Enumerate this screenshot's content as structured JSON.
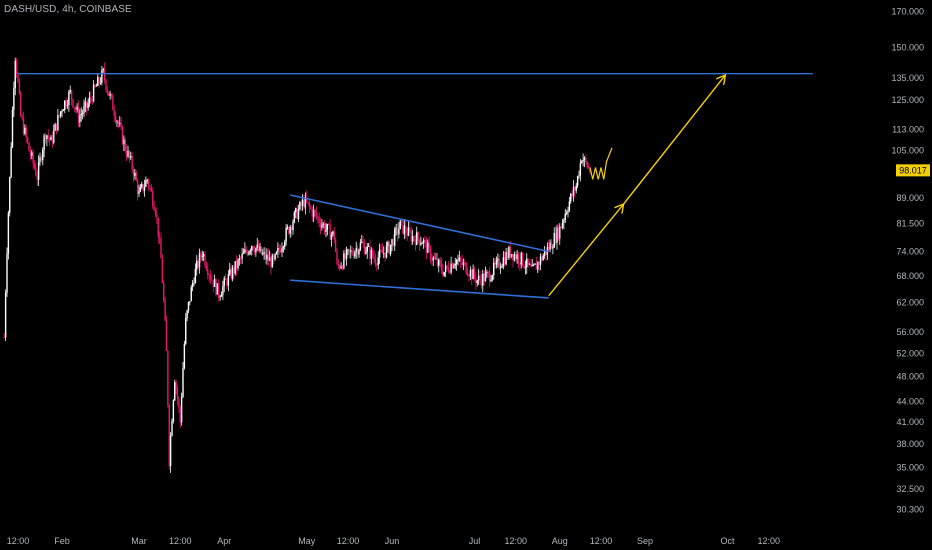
{
  "header": {
    "symbol_line": "DASH/USD, 4h, COINBASE"
  },
  "colors": {
    "background": "#000000",
    "candle_up": "#ffffff",
    "candle_down": "#e6196b",
    "trendline": "#2f6fd6",
    "projection": "#f5d000",
    "last_price_bg": "#f5d000",
    "tick_text": "#b2b5be"
  },
  "chart_data": {
    "type": "candlestick",
    "title": "DASH/USD, 4h, COINBASE",
    "y_scale": "log",
    "ylim": [
      29.5,
      172
    ],
    "y_ticks": [
      "170.000",
      "150.000",
      "135.000",
      "125.000",
      "113.000",
      "105.000",
      "89.000",
      "81.500",
      "74.000",
      "68.000",
      "62.000",
      "56.000",
      "52.000",
      "48.000",
      "44.000",
      "41.000",
      "38.000",
      "35.000",
      "32.500",
      "30.300"
    ],
    "x_ticks": [
      {
        "label": "12:00",
        "date": "2021-01-16"
      },
      {
        "label": "Feb",
        "date": "2021-02-01"
      },
      {
        "label": "Mar",
        "date": "2021-03-01"
      },
      {
        "label": "12:00",
        "date": "2021-03-16"
      },
      {
        "label": "Apr",
        "date": "2021-04-01"
      },
      {
        "label": "May",
        "date": "2021-05-01"
      },
      {
        "label": "12:00",
        "date": "2021-05-16"
      },
      {
        "label": "Jun",
        "date": "2021-06-01"
      },
      {
        "label": "Jul",
        "date": "2021-07-01"
      },
      {
        "label": "12:00",
        "date": "2021-07-16"
      },
      {
        "label": "Aug",
        "date": "2021-08-01"
      },
      {
        "label": "12:00",
        "date": "2021-08-16"
      },
      {
        "label": "Sep",
        "date": "2021-09-01"
      },
      {
        "label": "Oct",
        "date": "2021-10-01"
      },
      {
        "label": "12:00",
        "date": "2021-10-16"
      }
    ],
    "last_price": "98.017",
    "price_path": [
      [
        "2021-01-11",
        55
      ],
      [
        "2021-01-13",
        95
      ],
      [
        "2021-01-15",
        146
      ],
      [
        "2021-01-17",
        118
      ],
      [
        "2021-01-20",
        105
      ],
      [
        "2021-01-23",
        96
      ],
      [
        "2021-01-26",
        112
      ],
      [
        "2021-01-28",
        108
      ],
      [
        "2021-02-01",
        122
      ],
      [
        "2021-02-04",
        128
      ],
      [
        "2021-02-07",
        118
      ],
      [
        "2021-02-10",
        122
      ],
      [
        "2021-02-13",
        130
      ],
      [
        "2021-02-16",
        137
      ],
      [
        "2021-02-18",
        128
      ],
      [
        "2021-02-21",
        117
      ],
      [
        "2021-02-24",
        106
      ],
      [
        "2021-02-27",
        98
      ],
      [
        "2021-03-01",
        90
      ],
      [
        "2021-03-04",
        95
      ],
      [
        "2021-03-07",
        86
      ],
      [
        "2021-03-09",
        72
      ],
      [
        "2021-03-11",
        52
      ],
      [
        "2021-03-12",
        36
      ],
      [
        "2021-03-14",
        48
      ],
      [
        "2021-03-16",
        41
      ],
      [
        "2021-03-18",
        58
      ],
      [
        "2021-03-21",
        68
      ],
      [
        "2021-03-24",
        74
      ],
      [
        "2021-03-27",
        68
      ],
      [
        "2021-03-30",
        64
      ],
      [
        "2021-04-03",
        68
      ],
      [
        "2021-04-07",
        72
      ],
      [
        "2021-04-11",
        76
      ],
      [
        "2021-04-15",
        73
      ],
      [
        "2021-04-19",
        71
      ],
      [
        "2021-04-23",
        78
      ],
      [
        "2021-04-27",
        84
      ],
      [
        "2021-04-30",
        88
      ],
      [
        "2021-05-04",
        84
      ],
      [
        "2021-05-08",
        80
      ],
      [
        "2021-05-11",
        78
      ],
      [
        "2021-05-12",
        70
      ],
      [
        "2021-05-16",
        73
      ],
      [
        "2021-05-21",
        76
      ],
      [
        "2021-05-26",
        72
      ],
      [
        "2021-05-31",
        75
      ],
      [
        "2021-06-04",
        81
      ],
      [
        "2021-06-08",
        78
      ],
      [
        "2021-06-12",
        77
      ],
      [
        "2021-06-16",
        72
      ],
      [
        "2021-06-20",
        69
      ],
      [
        "2021-06-24",
        72
      ],
      [
        "2021-06-28",
        70
      ],
      [
        "2021-07-02",
        67
      ],
      [
        "2021-07-06",
        68
      ],
      [
        "2021-07-10",
        71
      ],
      [
        "2021-07-14",
        74
      ],
      [
        "2021-07-18",
        72
      ],
      [
        "2021-07-22",
        69
      ],
      [
        "2021-07-25",
        72
      ],
      [
        "2021-07-28",
        75
      ],
      [
        "2021-08-01",
        80
      ],
      [
        "2021-08-04",
        87
      ],
      [
        "2021-08-07",
        93
      ],
      [
        "2021-08-09",
        103
      ],
      [
        "2021-08-10",
        101
      ],
      [
        "2021-08-12",
        98
      ]
    ],
    "drawings": [
      {
        "kind": "horizontal_line",
        "price": 137,
        "from": "2021-01-16",
        "to": "2021-11-01"
      },
      {
        "kind": "trendline",
        "from": [
          "2021-04-25",
          90
        ],
        "to": [
          "2021-07-28",
          74
        ]
      },
      {
        "kind": "trendline",
        "from": [
          "2021-04-25",
          67
        ],
        "to": [
          "2021-07-28",
          63
        ]
      },
      {
        "kind": "arrow",
        "from": [
          "2021-07-28",
          63.5
        ],
        "to": [
          "2021-08-24",
          87
        ]
      },
      {
        "kind": "arrow",
        "from": [
          "2021-08-24",
          87
        ],
        "to": [
          "2021-09-30",
          136
        ]
      },
      {
        "kind": "zigzag",
        "points": [
          [
            "2021-08-12",
            99
          ],
          [
            "2021-08-13",
            95
          ],
          [
            "2021-08-14",
            99
          ],
          [
            "2021-08-15",
            95
          ],
          [
            "2021-08-16",
            99
          ],
          [
            "2021-08-17",
            95
          ],
          [
            "2021-08-18",
            101
          ],
          [
            "2021-08-20",
            106
          ]
        ]
      }
    ]
  }
}
